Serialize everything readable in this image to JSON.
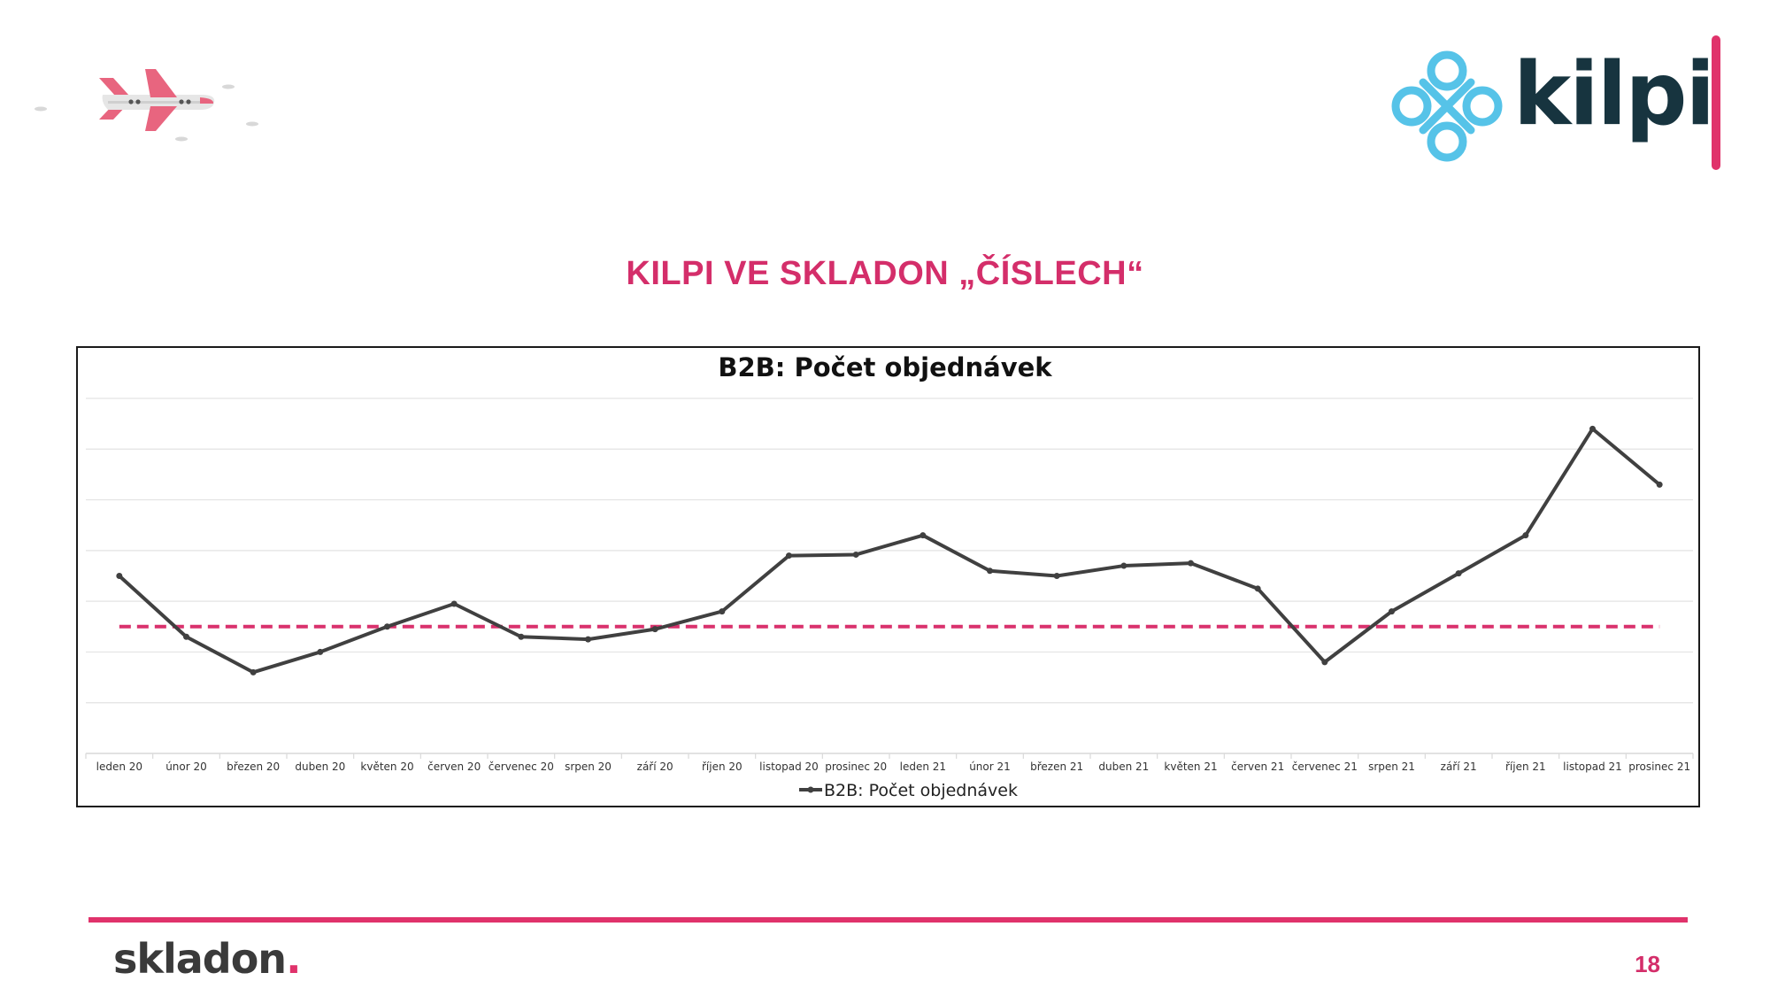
{
  "slide": {
    "title": "KILPI VE SKLADON „ČÍSLECH“",
    "page_number": "18"
  },
  "logos": {
    "kilpi_text": "kilpi",
    "skladon_text": "skladon",
    "skladon_dot": "."
  },
  "colors": {
    "accent": "#e0326b",
    "title": "#d42e6a",
    "series_line": "#404040",
    "average_line": "#d9316d",
    "kilpi_knot": "#56c3e8",
    "kilpi_text": "#17343f"
  },
  "chart_data": {
    "type": "line",
    "title": "B2B: Počet objednávek",
    "categories": [
      "leden 20",
      "únor 20",
      "březen 20",
      "duben 20",
      "květen 20",
      "červen 20",
      "červenec 20",
      "srpen 20",
      "září 20",
      "říjen 20",
      "listopad 20",
      "prosinec 20",
      "leden 21",
      "únor 21",
      "březen 21",
      "duben 21",
      "květen 21",
      "červen 21",
      "červenec 21",
      "srpen 21",
      "září 21",
      "říjen 21",
      "listopad 21",
      "prosinec 21"
    ],
    "series": [
      {
        "name": "B2B: Počet objednávek",
        "values": [
          3.5,
          2.3,
          1.6,
          2.0,
          2.5,
          2.95,
          2.3,
          2.25,
          2.45,
          2.8,
          3.9,
          3.92,
          4.3,
          3.6,
          3.5,
          3.7,
          3.75,
          3.25,
          1.8,
          2.8,
          3.55,
          4.3,
          6.4,
          5.3
        ]
      }
    ],
    "reference_line": {
      "style": "dashed",
      "value": 2.5
    },
    "ylim": [
      0,
      7
    ],
    "gridlines": 7,
    "y_axis_labels_shown": false,
    "legend": "bottom",
    "grid": true
  }
}
